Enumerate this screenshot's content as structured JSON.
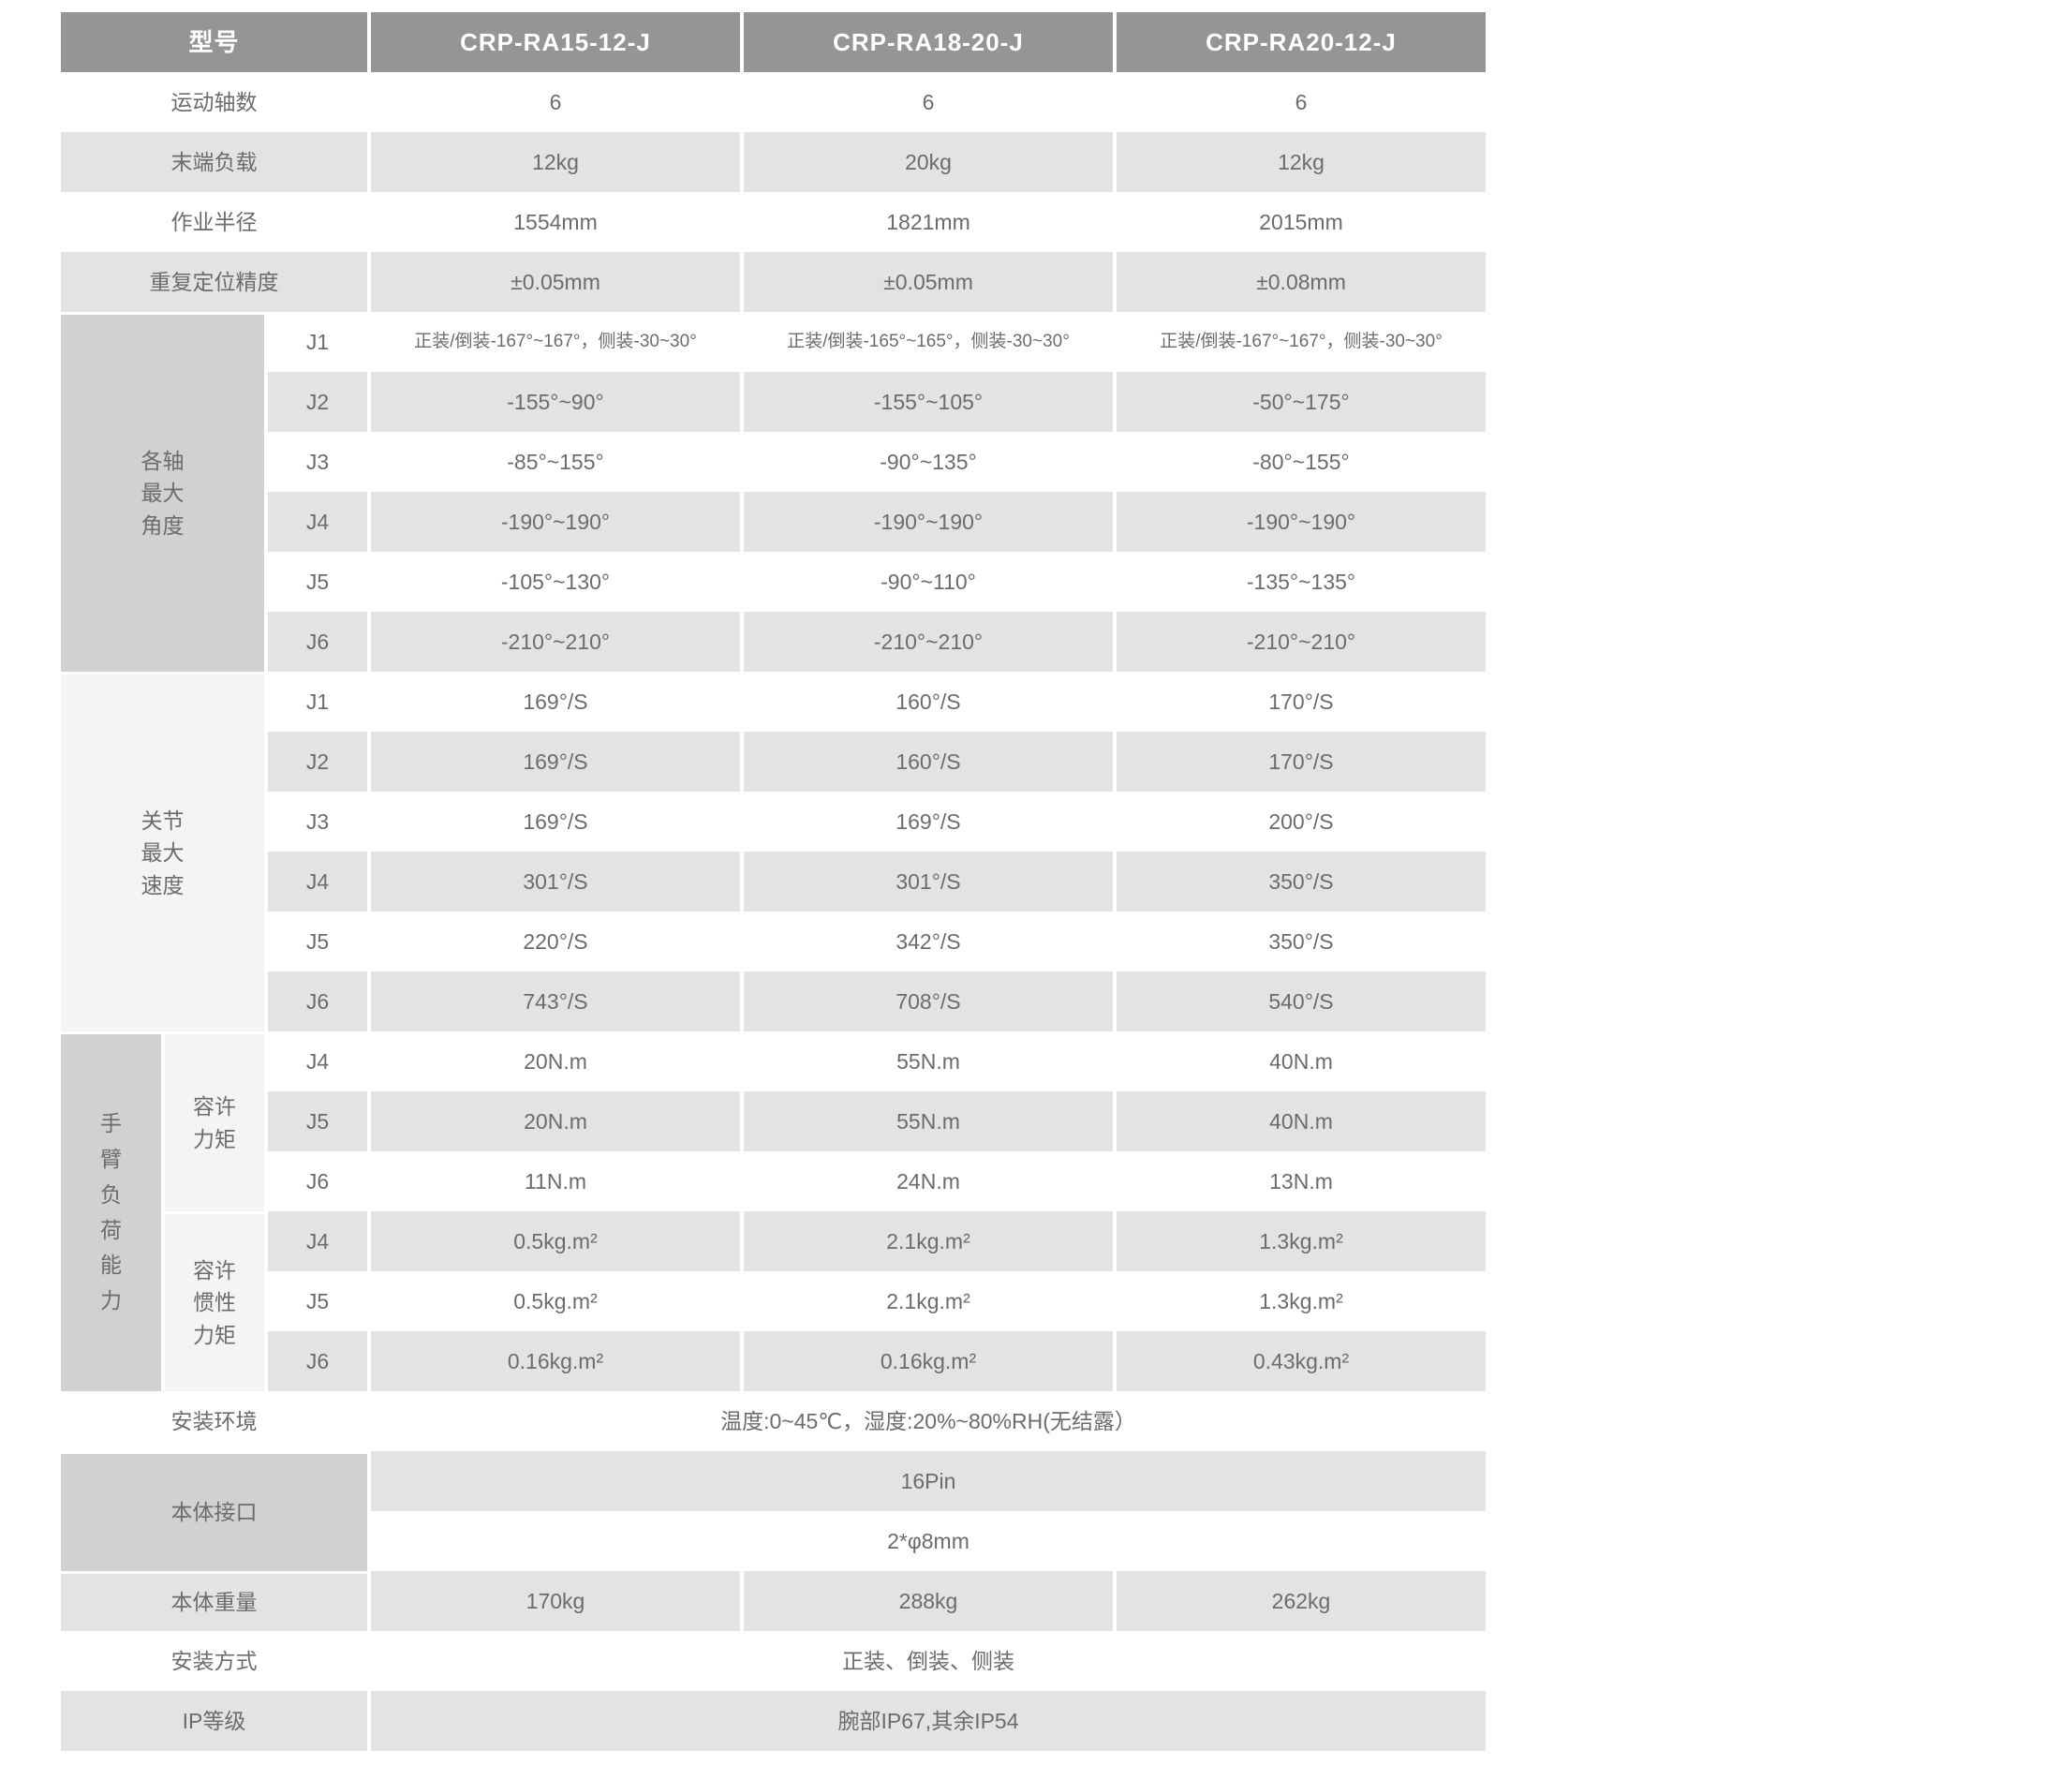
{
  "colors": {
    "header_bg": "#959595",
    "header_text": "#ffffff",
    "row_alt_bg": "#e2e3e3",
    "group_dark_bg": "#d0d1d1",
    "group_light_bg": "#f3f4f4",
    "body_text": "#6b6c6e"
  },
  "table": {
    "model_header": {
      "label": "型号",
      "models": [
        "CRP-RA15-12-J",
        "CRP-RA18-20-J",
        "CRP-RA20-12-J"
      ]
    },
    "basic_rows": [
      {
        "label": "运动轴数",
        "values": [
          "6",
          "6",
          "6"
        ]
      },
      {
        "label": "末端负载",
        "values": [
          "12kg",
          "20kg",
          "12kg"
        ]
      },
      {
        "label": "作业半径",
        "values": [
          "1554mm",
          "1821mm",
          "2015mm"
        ]
      },
      {
        "label": "重复定位精度",
        "values": [
          "±0.05mm",
          "±0.05mm",
          "±0.08mm"
        ]
      }
    ],
    "max_angle_group": {
      "label": "各轴\n最大\n角度",
      "rows": [
        {
          "joint": "J1",
          "values": [
            "正装/倒装-167°~167°，侧装-30~30°",
            "正装/倒装-165°~165°，侧装-30~30°",
            "正装/倒装-167°~167°，侧装-30~30°"
          ]
        },
        {
          "joint": "J2",
          "values": [
            "-155°~90°",
            "-155°~105°",
            "-50°~175°"
          ]
        },
        {
          "joint": "J3",
          "values": [
            "-85°~155°",
            "-90°~135°",
            "-80°~155°"
          ]
        },
        {
          "joint": "J4",
          "values": [
            "-190°~190°",
            "-190°~190°",
            "-190°~190°"
          ]
        },
        {
          "joint": "J5",
          "values": [
            "-105°~130°",
            "-90°~110°",
            "-135°~135°"
          ]
        },
        {
          "joint": "J6",
          "values": [
            "-210°~210°",
            "-210°~210°",
            "-210°~210°"
          ]
        }
      ]
    },
    "max_speed_group": {
      "label": "关节\n最大\n速度",
      "rows": [
        {
          "joint": "J1",
          "values": [
            "169°/S",
            "160°/S",
            "170°/S"
          ]
        },
        {
          "joint": "J2",
          "values": [
            "169°/S",
            "160°/S",
            "170°/S"
          ]
        },
        {
          "joint": "J3",
          "values": [
            "169°/S",
            "169°/S",
            "200°/S"
          ]
        },
        {
          "joint": "J4",
          "values": [
            "301°/S",
            "301°/S",
            "350°/S"
          ]
        },
        {
          "joint": "J5",
          "values": [
            "220°/S",
            "342°/S",
            "350°/S"
          ]
        },
        {
          "joint": "J6",
          "values": [
            "743°/S",
            "708°/S",
            "540°/S"
          ]
        }
      ]
    },
    "arm_load_group": {
      "label": "手\n臂\n负\n荷\n能\n力",
      "torque": {
        "label": "容许\n力矩",
        "rows": [
          {
            "joint": "J4",
            "values": [
              "20N.m",
              "55N.m",
              "40N.m"
            ]
          },
          {
            "joint": "J5",
            "values": [
              "20N.m",
              "55N.m",
              "40N.m"
            ]
          },
          {
            "joint": "J6",
            "values": [
              "11N.m",
              "24N.m",
              "13N.m"
            ]
          }
        ]
      },
      "inertia": {
        "label": "容许\n惯性\n力矩",
        "rows": [
          {
            "joint": "J4",
            "values": [
              "0.5kg.m²",
              "2.1kg.m²",
              "1.3kg.m²"
            ]
          },
          {
            "joint": "J5",
            "values": [
              "0.5kg.m²",
              "2.1kg.m²",
              "1.3kg.m²"
            ]
          },
          {
            "joint": "J6",
            "values": [
              "0.16kg.m²",
              "0.16kg.m²",
              "0.43kg.m²"
            ]
          }
        ]
      }
    },
    "environment_row": {
      "label": "安装环境",
      "value": "温度:0~45℃，湿度:20%~80%RH(无结露）"
    },
    "interface_group": {
      "label": "本体接口",
      "values": [
        "16Pin",
        "2*φ8mm"
      ]
    },
    "weight_row": {
      "label": "本体重量",
      "values": [
        "170kg",
        "288kg",
        "262kg"
      ]
    },
    "mounting_row": {
      "label": "安装方式",
      "value": "正装、倒装、侧装"
    },
    "ip_row": {
      "label": "IP等级",
      "value": "腕部IP67,其余IP54"
    }
  }
}
